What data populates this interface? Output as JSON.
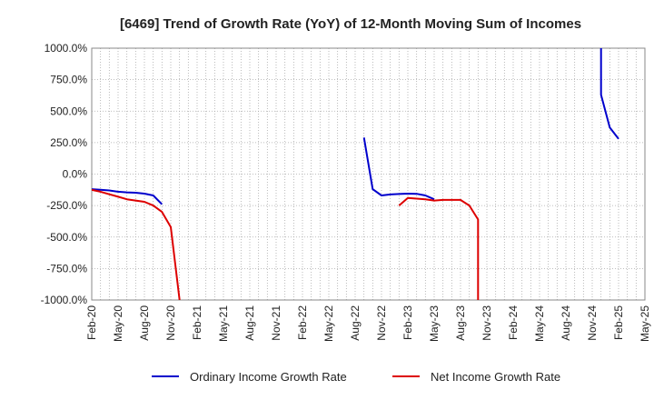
{
  "chart_data": {
    "type": "line",
    "title": "[6469]  Trend of Growth Rate (YoY) of 12-Month Moving Sum of Incomes",
    "xlabel": "",
    "ylabel": "",
    "ylim": [
      -1000,
      1000
    ],
    "yticks": [
      1000,
      750,
      500,
      250,
      0,
      -250,
      -500,
      -750,
      -1000
    ],
    "ytick_labels": [
      "1000.0%",
      "750.0%",
      "500.0%",
      "250.0%",
      "0.0%",
      "-250.0%",
      "-500.0%",
      "-750.0%",
      "-1000.0%"
    ],
    "xticks": [
      "Feb-20",
      "May-20",
      "Aug-20",
      "Nov-20",
      "Feb-21",
      "May-21",
      "Aug-21",
      "Nov-21",
      "Feb-22",
      "May-22",
      "Aug-22",
      "Nov-22",
      "Feb-23",
      "May-23",
      "Aug-23",
      "Nov-23",
      "Feb-24",
      "May-24",
      "Aug-24",
      "Nov-24",
      "Feb-25",
      "May-25"
    ],
    "x_start": "2020-02",
    "x_end": "2025-05",
    "grid": true,
    "legend_position": "bottom",
    "series": [
      {
        "name": "Ordinary Income Growth Rate",
        "color": "#0000cc",
        "points": [
          [
            "2020-02",
            -120
          ],
          [
            "2020-03",
            -125
          ],
          [
            "2020-04",
            -130
          ],
          [
            "2020-05",
            -140
          ],
          [
            "2020-06",
            -145
          ],
          [
            "2020-07",
            -148
          ],
          [
            "2020-08",
            -155
          ],
          [
            "2020-09",
            -170
          ],
          [
            "2020-10",
            -240
          ],
          null,
          [
            "2022-09",
            290
          ],
          [
            "2022-10",
            -120
          ],
          [
            "2022-11",
            -170
          ],
          [
            "2022-12",
            -162
          ],
          [
            "2023-01",
            -158
          ],
          [
            "2023-02",
            -155
          ],
          [
            "2023-03",
            -157
          ],
          [
            "2023-04",
            -170
          ],
          [
            "2023-05",
            -200
          ],
          null,
          [
            "2024-12",
            1000
          ],
          [
            "2024-12",
            630
          ],
          [
            "2025-01",
            370
          ],
          [
            "2025-02",
            280
          ]
        ]
      },
      {
        "name": "Net Income Growth Rate",
        "color": "#dd0000",
        "points": [
          [
            "2020-02",
            -125
          ],
          [
            "2020-03",
            -140
          ],
          [
            "2020-04",
            -160
          ],
          [
            "2020-05",
            -180
          ],
          [
            "2020-06",
            -200
          ],
          [
            "2020-07",
            -210
          ],
          [
            "2020-08",
            -220
          ],
          [
            "2020-09",
            -250
          ],
          [
            "2020-10",
            -300
          ],
          [
            "2020-11",
            -420
          ],
          [
            "2020-12",
            -1000
          ],
          null,
          [
            "2023-01",
            -250
          ],
          [
            "2023-02",
            -190
          ],
          [
            "2023-03",
            -195
          ],
          [
            "2023-04",
            -200
          ],
          [
            "2023-05",
            -210
          ],
          [
            "2023-06",
            -205
          ],
          [
            "2023-07",
            -205
          ],
          [
            "2023-08",
            -205
          ],
          [
            "2023-09",
            -250
          ],
          [
            "2023-10",
            -360
          ],
          [
            "2023-10",
            -1000
          ]
        ]
      }
    ]
  }
}
